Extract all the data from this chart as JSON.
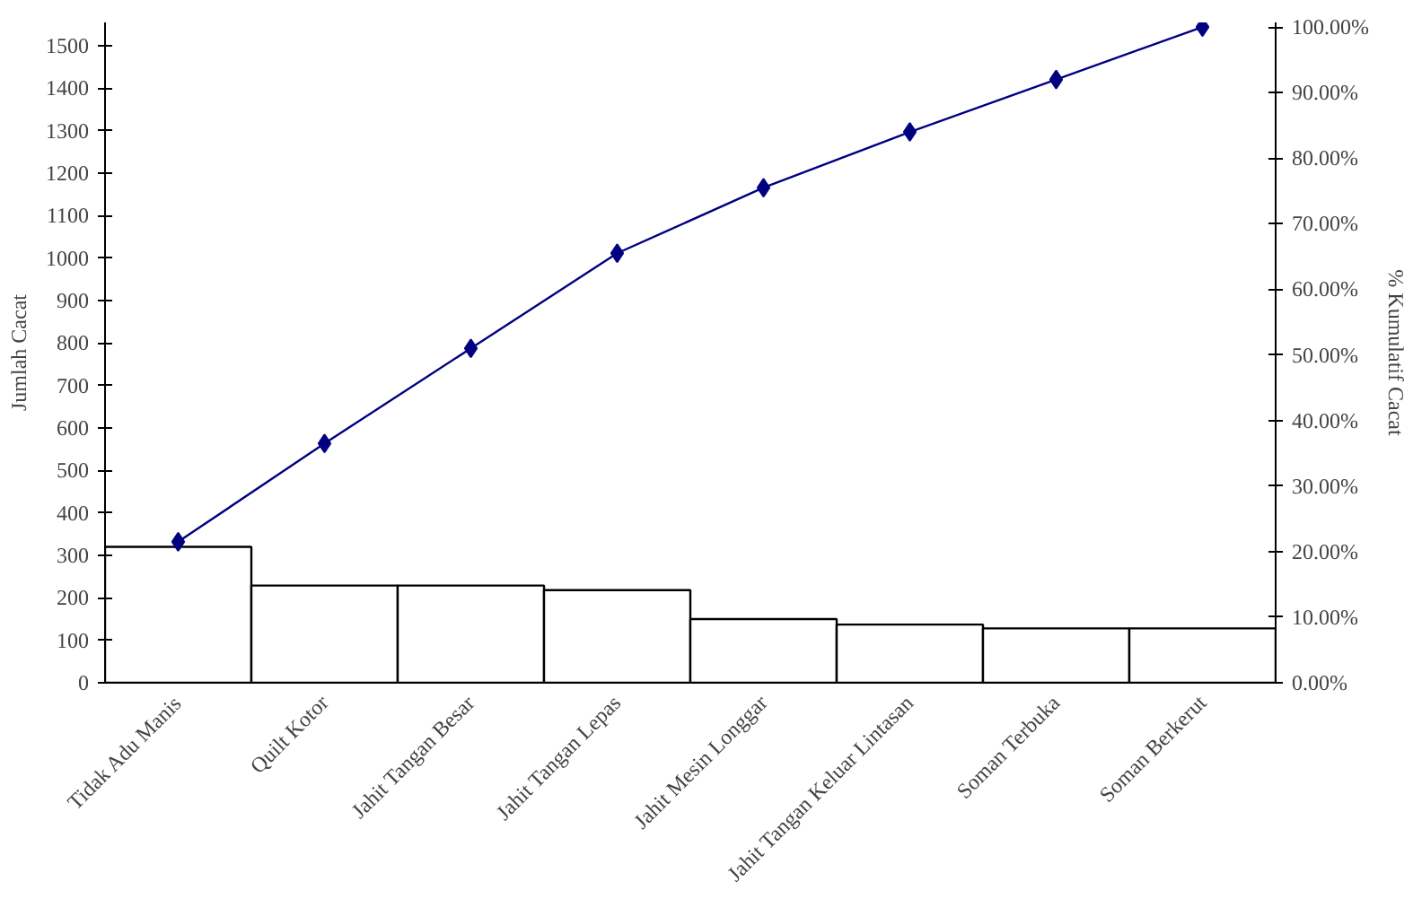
{
  "chart_data": {
    "type": "bar",
    "categories": [
      "Tidak Adu Manis",
      "Quilt Kotor",
      "Jahit Tangan Besar",
      "Jahit Tangan Lepas",
      "Jahit Mesin Longgar",
      "Jahit Tangan Keluar Lintasan",
      "Soman Terbuka",
      "Soman Berkerut"
    ],
    "ylabel": "Jumlah Cacat",
    "y2label": "% Kumulatif Cacat",
    "ylim": [
      0,
      1555
    ],
    "yticks": [
      0,
      100,
      200,
      300,
      400,
      500,
      600,
      700,
      800,
      900,
      1000,
      1100,
      1200,
      1300,
      1400,
      1500
    ],
    "y2lim": [
      0,
      100.7
    ],
    "y2ticks": [
      {
        "value": 0,
        "label": "0.00%"
      },
      {
        "value": 10,
        "label": "10.00%"
      },
      {
        "value": 20,
        "label": "20.00%"
      },
      {
        "value": 30,
        "label": "30.00%"
      },
      {
        "value": 40,
        "label": "40.00%"
      },
      {
        "value": 50,
        "label": "50.00%"
      },
      {
        "value": 60,
        "label": "60.00%"
      },
      {
        "value": 70,
        "label": "70.00%"
      },
      {
        "value": 80,
        "label": "80.00%"
      },
      {
        "value": 90,
        "label": "90.00%"
      },
      {
        "value": 100,
        "label": "100.00%"
      }
    ],
    "grid": false,
    "series": [
      {
        "color": "#ffffff",
        "values": [
          320,
          229,
          229,
          218,
          150,
          137,
          128,
          128
        ]
      },
      {
        "type": "line",
        "axis": "y2",
        "color": "#000080",
        "marker": "diamond",
        "line_style": "solid",
        "values": [
          21.5,
          36.5,
          51,
          65.5,
          75.5,
          84,
          92,
          100
        ]
      }
    ]
  }
}
